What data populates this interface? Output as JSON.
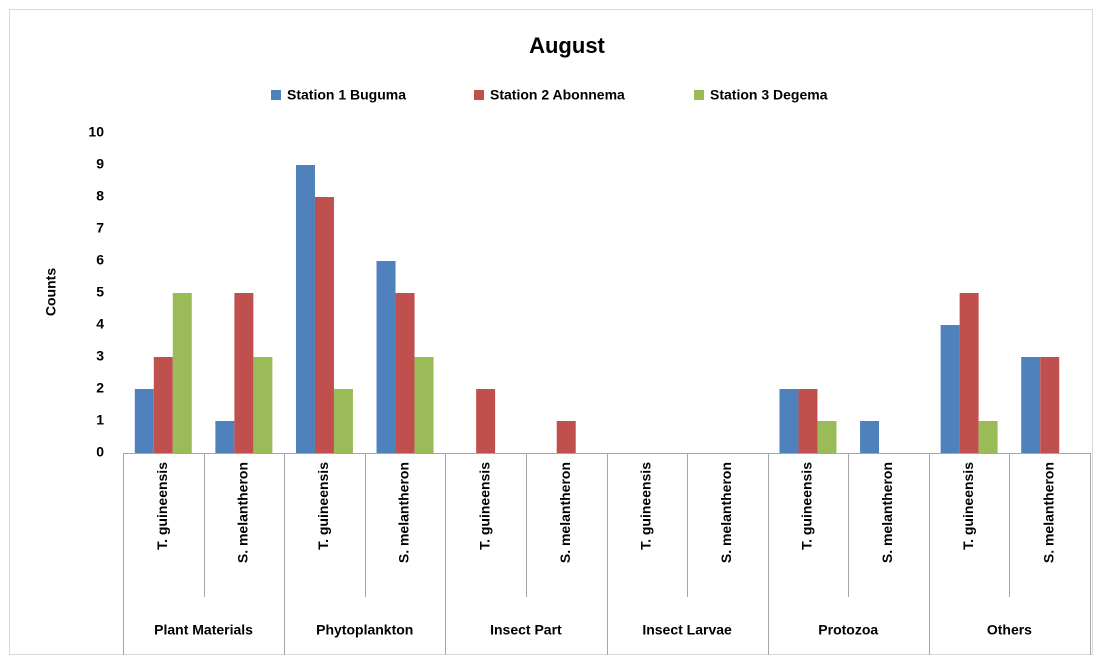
{
  "chart_data": {
    "type": "bar",
    "title": "August",
    "y_label": "Counts",
    "categories": [
      "T. guineensis",
      "S. melantheron",
      "T. guineensis",
      "S. melantheron",
      "T. guineensis",
      "S. melantheron",
      "T. guineensis",
      "S. melantheron",
      "T. guineensis",
      "S. melantheron",
      "T. guineensis",
      "S. melantheron"
    ],
    "groups": [
      "Plant Materials",
      "Phytoplankton",
      "Insect Part",
      "Insect Larvae",
      "Protozoa",
      "Others"
    ],
    "series": [
      {
        "name": "Station 1 Buguma",
        "color": "#4f81bd",
        "values": [
          2,
          1,
          9,
          6,
          0,
          0,
          0,
          0,
          2,
          1,
          4,
          3
        ]
      },
      {
        "name": "Station 2 Abonnema",
        "color": "#c0504d",
        "values": [
          3,
          5,
          8,
          5,
          2,
          1,
          0,
          0,
          2,
          0,
          5,
          3
        ]
      },
      {
        "name": "Station 3 Degema",
        "color": "#9bbb59",
        "values": [
          5,
          3,
          2,
          3,
          0,
          0,
          0,
          0,
          1,
          0,
          1,
          0
        ]
      }
    ],
    "ylim": [
      0,
      10
    ],
    "yticks": [
      0,
      1,
      2,
      3,
      4,
      5,
      6,
      7,
      8,
      9,
      10
    ],
    "legend": "top"
  }
}
